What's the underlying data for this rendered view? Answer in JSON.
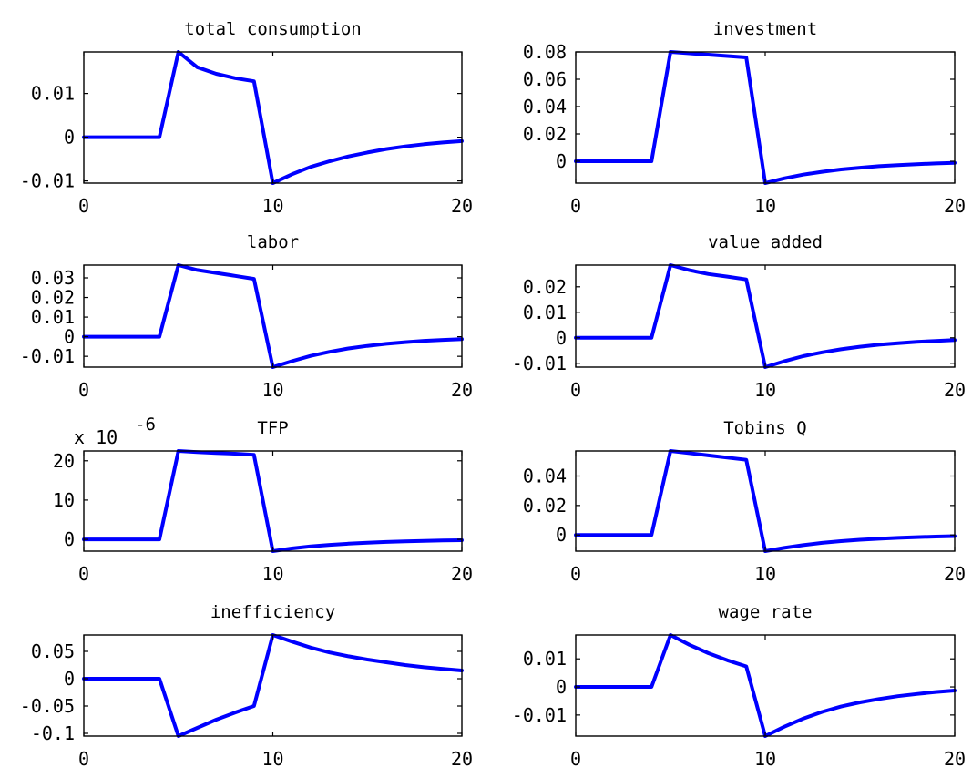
{
  "colors": {
    "line": "#0000ff",
    "axes": "#000000",
    "background": "#ffffff"
  },
  "chart_data": [
    {
      "type": "line",
      "title": "total consumption",
      "xlim": [
        0,
        20
      ],
      "ylim": [
        -0.0105,
        0.0195
      ],
      "xticks": [
        0,
        10,
        20
      ],
      "xtick_labels": [
        "0",
        "10",
        "20"
      ],
      "yticks": [
        -0.01,
        0,
        0.01
      ],
      "ytick_labels": [
        "-0.01",
        "0",
        "0.01"
      ],
      "exponent_label": "",
      "x": [
        0,
        1,
        2,
        3,
        4,
        5,
        6,
        7,
        8,
        9,
        10,
        11,
        12,
        13,
        14,
        15,
        16,
        17,
        18,
        19,
        20
      ],
      "series": [
        {
          "values": [
            0,
            0,
            0,
            0,
            0,
            0.0195,
            0.016,
            0.0145,
            0.0135,
            0.0128,
            -0.0105,
            -0.0085,
            -0.0068,
            -0.0055,
            -0.0044,
            -0.0035,
            -0.0027,
            -0.0021,
            -0.0016,
            -0.0012,
            -0.0009
          ]
        }
      ]
    },
    {
      "type": "line",
      "title": "investment",
      "xlim": [
        0,
        20
      ],
      "ylim": [
        -0.016,
        0.08
      ],
      "xticks": [
        0,
        10,
        20
      ],
      "xtick_labels": [
        "0",
        "10",
        "20"
      ],
      "yticks": [
        0,
        0.02,
        0.04,
        0.06,
        0.08
      ],
      "ytick_labels": [
        "0",
        "0.02",
        "0.04",
        "0.06",
        "0.08"
      ],
      "exponent_label": "",
      "x": [
        0,
        1,
        2,
        3,
        4,
        5,
        6,
        7,
        8,
        9,
        10,
        11,
        12,
        13,
        14,
        15,
        16,
        17,
        18,
        19,
        20
      ],
      "series": [
        {
          "values": [
            0,
            0,
            0,
            0,
            0,
            0.08,
            0.079,
            0.078,
            0.077,
            0.076,
            -0.016,
            -0.0125,
            -0.0098,
            -0.0077,
            -0.006,
            -0.0047,
            -0.0036,
            -0.0028,
            -0.0021,
            -0.0016,
            -0.0012
          ]
        }
      ]
    },
    {
      "type": "line",
      "title": "labor",
      "xlim": [
        0,
        20
      ],
      "ylim": [
        -0.0155,
        0.0365
      ],
      "xticks": [
        0,
        10,
        20
      ],
      "xtick_labels": [
        "0",
        "10",
        "20"
      ],
      "yticks": [
        -0.01,
        0,
        0.01,
        0.02,
        0.03
      ],
      "ytick_labels": [
        "-0.01",
        "0",
        "0.01",
        "0.02",
        "0.03"
      ],
      "exponent_label": "",
      "x": [
        0,
        1,
        2,
        3,
        4,
        5,
        6,
        7,
        8,
        9,
        10,
        11,
        12,
        13,
        14,
        15,
        16,
        17,
        18,
        19,
        20
      ],
      "series": [
        {
          "values": [
            0,
            0,
            0,
            0,
            0,
            0.0365,
            0.034,
            0.0325,
            0.031,
            0.0295,
            -0.0155,
            -0.0125,
            -0.0098,
            -0.0077,
            -0.006,
            -0.0047,
            -0.0036,
            -0.0028,
            -0.0021,
            -0.0016,
            -0.0012
          ]
        }
      ]
    },
    {
      "type": "line",
      "title": "value added",
      "xlim": [
        0,
        20
      ],
      "ylim": [
        -0.0115,
        0.0285
      ],
      "xticks": [
        0,
        10,
        20
      ],
      "xtick_labels": [
        "0",
        "10",
        "20"
      ],
      "yticks": [
        -0.01,
        0,
        0.01,
        0.02
      ],
      "ytick_labels": [
        "-0.01",
        "0",
        "0.01",
        "0.02"
      ],
      "exponent_label": "",
      "x": [
        0,
        1,
        2,
        3,
        4,
        5,
        6,
        7,
        8,
        9,
        10,
        11,
        12,
        13,
        14,
        15,
        16,
        17,
        18,
        19,
        20
      ],
      "series": [
        {
          "values": [
            0,
            0,
            0,
            0,
            0,
            0.0285,
            0.0265,
            0.025,
            0.024,
            0.0229,
            -0.0115,
            -0.0092,
            -0.0072,
            -0.0057,
            -0.0045,
            -0.0035,
            -0.0027,
            -0.0021,
            -0.0016,
            -0.0012,
            -0.0009
          ]
        }
      ]
    },
    {
      "type": "line",
      "title": "TFP",
      "xlim": [
        0,
        20
      ],
      "ylim": [
        -3,
        22.5
      ],
      "xticks": [
        0,
        10,
        20
      ],
      "xtick_labels": [
        "0",
        "10",
        "20"
      ],
      "yticks": [
        0,
        10,
        20
      ],
      "ytick_labels": [
        "0",
        "10",
        "20"
      ],
      "exponent_label": "x 10",
      "exponent_power": "-6",
      "x": [
        0,
        1,
        2,
        3,
        4,
        5,
        6,
        7,
        8,
        9,
        10,
        11,
        12,
        13,
        14,
        15,
        16,
        17,
        18,
        19,
        20
      ],
      "series": [
        {
          "values": [
            0,
            0,
            0,
            0,
            0,
            22.5,
            22.2,
            22,
            21.8,
            21.5,
            -3,
            -2.3,
            -1.8,
            -1.4,
            -1.1,
            -0.85,
            -0.66,
            -0.5,
            -0.38,
            -0.29,
            -0.22
          ]
        }
      ]
    },
    {
      "type": "line",
      "title": "Tobins Q",
      "xlim": [
        0,
        20
      ],
      "ylim": [
        -0.011,
        0.057
      ],
      "xticks": [
        0,
        10,
        20
      ],
      "xtick_labels": [
        "0",
        "10",
        "20"
      ],
      "yticks": [
        0,
        0.02,
        0.04
      ],
      "ytick_labels": [
        "0",
        "0.02",
        "0.04"
      ],
      "exponent_label": "",
      "x": [
        0,
        1,
        2,
        3,
        4,
        5,
        6,
        7,
        8,
        9,
        10,
        11,
        12,
        13,
        14,
        15,
        16,
        17,
        18,
        19,
        20
      ],
      "series": [
        {
          "values": [
            0,
            0,
            0,
            0,
            0,
            0.057,
            0.0555,
            0.054,
            0.0525,
            0.051,
            -0.011,
            -0.0088,
            -0.0069,
            -0.0054,
            -0.0042,
            -0.0033,
            -0.0026,
            -0.002,
            -0.0015,
            -0.0011,
            -0.0008
          ]
        }
      ]
    },
    {
      "type": "line",
      "title": "inefficiency",
      "xlim": [
        0,
        20
      ],
      "ylim": [
        -0.105,
        0.08
      ],
      "xticks": [
        0,
        10,
        20
      ],
      "xtick_labels": [
        "0",
        "10",
        "20"
      ],
      "yticks": [
        -0.1,
        -0.05,
        0,
        0.05
      ],
      "ytick_labels": [
        "-0.1",
        "-0.05",
        "0",
        "0.05"
      ],
      "exponent_label": "",
      "x": [
        0,
        1,
        2,
        3,
        4,
        5,
        6,
        7,
        8,
        9,
        10,
        11,
        12,
        13,
        14,
        15,
        16,
        17,
        18,
        19,
        20
      ],
      "series": [
        {
          "values": [
            0,
            0,
            0,
            0,
            0,
            -0.105,
            -0.09,
            -0.075,
            -0.062,
            -0.05,
            0.08,
            0.068,
            0.057,
            0.048,
            0.041,
            0.035,
            0.03,
            0.025,
            0.021,
            0.018,
            0.015
          ]
        }
      ]
    },
    {
      "type": "line",
      "title": "wage rate",
      "xlim": [
        0,
        20
      ],
      "ylim": [
        -0.0175,
        0.0185
      ],
      "xticks": [
        0,
        10,
        20
      ],
      "xtick_labels": [
        "0",
        "10",
        "20"
      ],
      "yticks": [
        -0.01,
        0,
        0.01
      ],
      "ytick_labels": [
        "-0.01",
        "0",
        "0.01"
      ],
      "exponent_label": "",
      "x": [
        0,
        1,
        2,
        3,
        4,
        5,
        6,
        7,
        8,
        9,
        10,
        11,
        12,
        13,
        14,
        15,
        16,
        17,
        18,
        19,
        20
      ],
      "series": [
        {
          "values": [
            0,
            0,
            0,
            0,
            0,
            0.0185,
            0.015,
            0.012,
            0.0095,
            0.0073,
            -0.0175,
            -0.0142,
            -0.0113,
            -0.0089,
            -0.007,
            -0.0055,
            -0.0043,
            -0.0033,
            -0.0025,
            -0.0018,
            -0.0013
          ]
        }
      ]
    }
  ]
}
